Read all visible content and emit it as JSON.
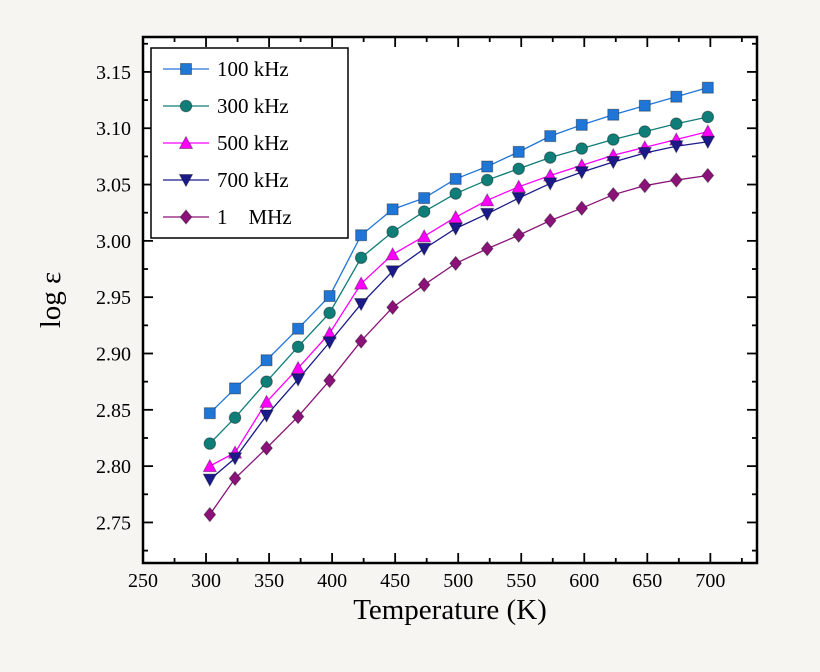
{
  "figure": {
    "background": "#f7f5f2",
    "plot_background": "#ffffff",
    "frame_color": "#000000"
  },
  "chart_data": {
    "type": "line",
    "title": "",
    "xlabel": "Temperature (K)",
    "ylabel": "log ε",
    "xlim": [
      250,
      737
    ],
    "ylim": [
      2.714,
      3.181
    ],
    "xticks": [
      250,
      300,
      350,
      400,
      450,
      500,
      550,
      600,
      650,
      700
    ],
    "yticks": [
      2.75,
      2.8,
      2.85,
      2.9,
      2.95,
      3.0,
      3.05,
      3.1,
      3.15
    ],
    "x_minor_step": 25,
    "y_minor_step": 0.025,
    "grid": false,
    "legend_position": "top-left",
    "x": [
      303,
      323,
      348,
      373,
      398,
      423,
      448,
      473,
      498,
      523,
      548,
      573,
      598,
      623,
      648,
      673,
      698
    ],
    "series": [
      {
        "name": "100 kHz",
        "marker": "square",
        "color": "#2076d6",
        "values": [
          2.847,
          2.869,
          2.894,
          2.922,
          2.951,
          3.005,
          3.028,
          3.038,
          3.055,
          3.066,
          3.079,
          3.093,
          3.103,
          3.112,
          3.12,
          3.128,
          3.136
        ]
      },
      {
        "name": "300 kHz",
        "marker": "circle",
        "color": "#0f7d78",
        "values": [
          2.82,
          2.843,
          2.875,
          2.906,
          2.936,
          2.985,
          3.008,
          3.026,
          3.042,
          3.054,
          3.064,
          3.074,
          3.082,
          3.09,
          3.097,
          3.104,
          3.11
        ]
      },
      {
        "name": "500 kHz",
        "marker": "triangle-up",
        "color": "#ff00ff",
        "values": [
          2.8,
          2.812,
          2.857,
          2.887,
          2.918,
          2.962,
          2.988,
          3.004,
          3.021,
          3.036,
          3.048,
          3.058,
          3.067,
          3.076,
          3.083,
          3.09,
          3.097
        ]
      },
      {
        "name": "700 kHz",
        "marker": "triangle-down",
        "color": "#1a1a8a",
        "values": [
          2.788,
          2.807,
          2.845,
          2.877,
          2.91,
          2.944,
          2.973,
          2.993,
          3.011,
          3.024,
          3.038,
          3.051,
          3.061,
          3.07,
          3.078,
          3.084,
          3.088
        ]
      },
      {
        "name": "1    MHz",
        "marker": "diamond",
        "color": "#8a1278",
        "values": [
          2.757,
          2.789,
          2.816,
          2.844,
          2.876,
          2.911,
          2.941,
          2.961,
          2.98,
          2.993,
          3.005,
          3.018,
          3.029,
          3.041,
          3.049,
          3.054,
          3.058
        ]
      }
    ]
  }
}
